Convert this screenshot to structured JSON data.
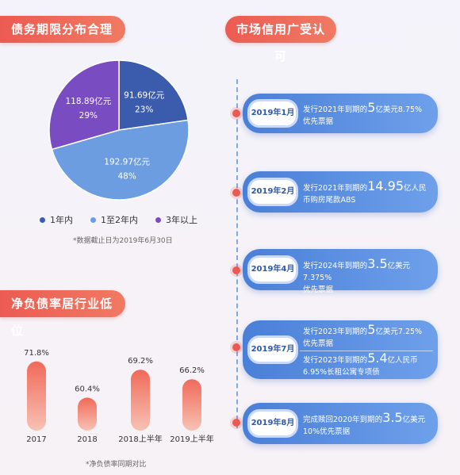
{
  "titles": {
    "debt_maturity": "债务期限分布合理",
    "market_credit": "市场信用广受认可",
    "net_debt": "净负债率居行业低位"
  },
  "pie_note": "*数据截止日为2019年6月30日",
  "bar_note": "*净负债率同期对比",
  "legend": [
    {
      "label": "1年内",
      "color": "#3b5cad"
    },
    {
      "label": "1至2年内",
      "color": "#6b9de0"
    },
    {
      "label": "3年以上",
      "color": "#7a4cc2"
    }
  ],
  "chart_data": [
    {
      "type": "pie",
      "categories": [
        "1年内",
        "1至2年内",
        "3年以上"
      ],
      "values": [
        91.69,
        192.97,
        118.89
      ],
      "value_labels": [
        "91.69亿元",
        "192.97亿元",
        "118.89亿元"
      ],
      "percent_labels": [
        "23%",
        "48%",
        "29%"
      ],
      "colors": [
        "#3b5cad",
        "#6b9de0",
        "#7a4cc2"
      ],
      "legend_position": "bottom"
    },
    {
      "type": "bar",
      "categories": [
        "2017",
        "2018",
        "2018上半年",
        "2019上半年"
      ],
      "values": [
        71.8,
        60.4,
        69.2,
        66.2
      ],
      "value_labels": [
        "71.8%",
        "60.4%",
        "69.2%",
        "66.2%"
      ],
      "ylim": [
        50,
        75
      ],
      "grid": false
    }
  ],
  "timeline": [
    {
      "date": "2019年1月",
      "lines": [
        {
          "pre": "发行2021年到期的",
          "big": "5",
          "post": "亿美元8.75%",
          "line2": "优先票据"
        }
      ]
    },
    {
      "date": "2019年2月",
      "lines": [
        {
          "pre": "发行2021年到期的",
          "big": "14.95",
          "post": "亿人民",
          "line2": "币购房尾款ABS"
        }
      ]
    },
    {
      "date": "2019年4月",
      "lines": [
        {
          "pre": "发行2024年到期的",
          "big": "3.5",
          "post": "亿美元7.375%",
          "line2": "优先票据"
        }
      ]
    },
    {
      "date": "2019年7月",
      "lines": [
        {
          "pre": "发行2023年到期的",
          "big": "5",
          "post": "亿美元7.25%",
          "line2": "优先票据"
        },
        {
          "pre": "发行2023年到期的",
          "big": "5.4",
          "post": "亿人民币",
          "line2": "6.95%长租公寓专项债"
        }
      ]
    },
    {
      "date": "2019年8月",
      "lines": [
        {
          "pre": "完成赎回2020年到期的",
          "big": "3.5",
          "post": "亿美元",
          "line2": "10%优先票据"
        }
      ]
    }
  ]
}
